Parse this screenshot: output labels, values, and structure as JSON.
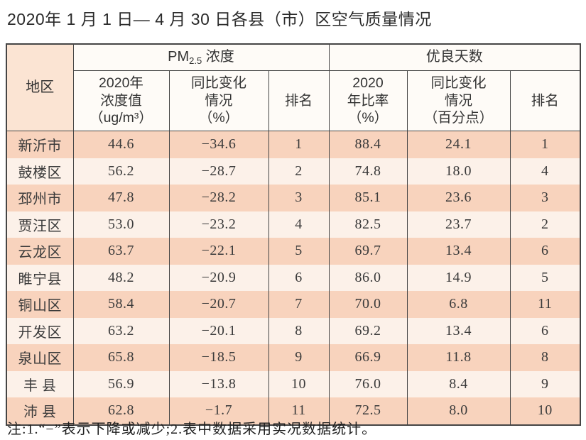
{
  "title": "2020年 1 月 1 日— 4 月 30 日各县（市）区空气质量情况",
  "footnote": "注:1.“−”表示下降或减少;2.表中数据采用实况数据统计。",
  "colors": {
    "row_salmon": "#f8d3bd",
    "row_light": "#fcf1e9",
    "header_peach": "#fbe4d3",
    "header_cream": "#fefbf7",
    "border": "#454545"
  },
  "table": {
    "region_header": "地区",
    "group_headers": {
      "pm_prefix": "PM",
      "pm_sub": "2.5",
      "pm_name": " 浓度",
      "good_days": "优良天数"
    },
    "sub_headers": {
      "col_concentration": [
        "2020年",
        "浓度值",
        "（ug/m³）"
      ],
      "col_pm_change": [
        "同比变化",
        "情况",
        "（%）"
      ],
      "col_rank1": "排名",
      "col_rate": [
        "2020",
        "年比率",
        "（%）"
      ],
      "col_rate_change": [
        "同比变化",
        "情况",
        "（百分点）"
      ],
      "col_rank2": "排名"
    },
    "rows": [
      {
        "region": "新沂市",
        "pm_value": "44.6",
        "pm_change": "−34.6",
        "pm_rank": "1",
        "rate": "88.4",
        "rate_change": "24.1",
        "rate_rank": "1"
      },
      {
        "region": "鼓楼区",
        "pm_value": "56.2",
        "pm_change": "−28.7",
        "pm_rank": "2",
        "rate": "74.8",
        "rate_change": "18.0",
        "rate_rank": "4"
      },
      {
        "region": "邳州市",
        "pm_value": "47.8",
        "pm_change": "−28.2",
        "pm_rank": "3",
        "rate": "85.1",
        "rate_change": "23.6",
        "rate_rank": "3"
      },
      {
        "region": "贾汪区",
        "pm_value": "53.0",
        "pm_change": "−23.2",
        "pm_rank": "4",
        "rate": "82.5",
        "rate_change": "23.7",
        "rate_rank": "2"
      },
      {
        "region": "云龙区",
        "pm_value": "63.7",
        "pm_change": "−22.1",
        "pm_rank": "5",
        "rate": "69.7",
        "rate_change": "13.4",
        "rate_rank": "6"
      },
      {
        "region": "睢宁县",
        "pm_value": "48.2",
        "pm_change": "−20.9",
        "pm_rank": "6",
        "rate": "86.0",
        "rate_change": "14.9",
        "rate_rank": "5"
      },
      {
        "region": "铜山区",
        "pm_value": "58.4",
        "pm_change": "−20.7",
        "pm_rank": "7",
        "rate": "70.0",
        "rate_change": "6.8",
        "rate_rank": "11"
      },
      {
        "region": "开发区",
        "pm_value": "63.2",
        "pm_change": "−20.1",
        "pm_rank": "8",
        "rate": "69.2",
        "rate_change": "13.4",
        "rate_rank": "6"
      },
      {
        "region": "泉山区",
        "pm_value": "65.8",
        "pm_change": "−18.5",
        "pm_rank": "9",
        "rate": "66.9",
        "rate_change": "11.8",
        "rate_rank": "8"
      },
      {
        "region": "丰 县",
        "pm_value": "56.9",
        "pm_change": "−13.8",
        "pm_rank": "10",
        "rate": "76.0",
        "rate_change": "8.4",
        "rate_rank": "9"
      },
      {
        "region": "沛 县",
        "pm_value": "62.8",
        "pm_change": "−1.7",
        "pm_rank": "11",
        "rate": "72.5",
        "rate_change": "8.0",
        "rate_rank": "10"
      }
    ]
  }
}
